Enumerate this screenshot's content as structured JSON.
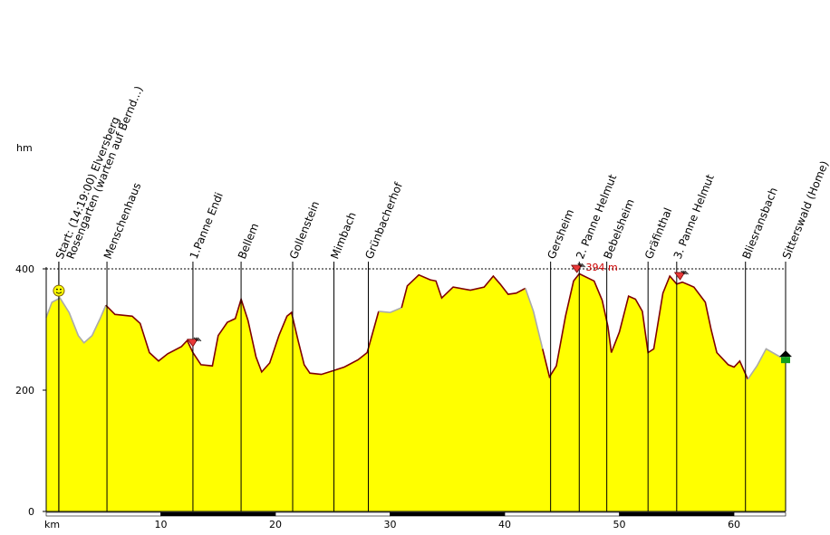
{
  "chart_data": {
    "type": "area",
    "ylabel": "hm",
    "xlabel": "km",
    "xlim": [
      0,
      64.5
    ],
    "ylim": [
      0,
      400
    ],
    "y_ticks": [
      "0",
      "200",
      "400"
    ],
    "x_ticks": [
      "10",
      "20",
      "30",
      "40",
      "50",
      "60"
    ],
    "colors": {
      "fill": "#ffff00",
      "line": "#800000",
      "paved_line": "#aaaaaa"
    },
    "profile": [
      {
        "km": 0.0,
        "alt": 320
      },
      {
        "km": 0.5,
        "alt": 345
      },
      {
        "km": 1.2,
        "alt": 352
      },
      {
        "km": 2.0,
        "alt": 328
      },
      {
        "km": 2.8,
        "alt": 290
      },
      {
        "km": 3.3,
        "alt": 278
      },
      {
        "km": 4.0,
        "alt": 290
      },
      {
        "km": 4.7,
        "alt": 318
      },
      {
        "km": 5.2,
        "alt": 340
      },
      {
        "km": 6.0,
        "alt": 325
      },
      {
        "km": 7.5,
        "alt": 322
      },
      {
        "km": 8.2,
        "alt": 310
      },
      {
        "km": 9.0,
        "alt": 262
      },
      {
        "km": 9.8,
        "alt": 248
      },
      {
        "km": 10.6,
        "alt": 260
      },
      {
        "km": 11.8,
        "alt": 272
      },
      {
        "km": 12.3,
        "alt": 282
      },
      {
        "km": 12.8,
        "alt": 262
      },
      {
        "km": 13.5,
        "alt": 242
      },
      {
        "km": 14.5,
        "alt": 240
      },
      {
        "km": 15.0,
        "alt": 290
      },
      {
        "km": 15.8,
        "alt": 312
      },
      {
        "km": 16.5,
        "alt": 318
      },
      {
        "km": 17.0,
        "alt": 350
      },
      {
        "km": 17.6,
        "alt": 315
      },
      {
        "km": 18.3,
        "alt": 255
      },
      {
        "km": 18.8,
        "alt": 230
      },
      {
        "km": 19.5,
        "alt": 245
      },
      {
        "km": 20.3,
        "alt": 290
      },
      {
        "km": 21.0,
        "alt": 322
      },
      {
        "km": 21.4,
        "alt": 328
      },
      {
        "km": 22.0,
        "alt": 280
      },
      {
        "km": 22.5,
        "alt": 242
      },
      {
        "km": 23.0,
        "alt": 228
      },
      {
        "km": 24.0,
        "alt": 226
      },
      {
        "km": 25.0,
        "alt": 232
      },
      {
        "km": 26.0,
        "alt": 238
      },
      {
        "km": 27.2,
        "alt": 250
      },
      {
        "km": 28.0,
        "alt": 262
      },
      {
        "km": 29.0,
        "alt": 330
      },
      {
        "km": 30.0,
        "alt": 328
      },
      {
        "km": 31.0,
        "alt": 336
      },
      {
        "km": 31.5,
        "alt": 372
      },
      {
        "km": 32.5,
        "alt": 390
      },
      {
        "km": 33.5,
        "alt": 382
      },
      {
        "km": 34.0,
        "alt": 380
      },
      {
        "km": 34.5,
        "alt": 352
      },
      {
        "km": 35.5,
        "alt": 370
      },
      {
        "km": 37.0,
        "alt": 365
      },
      {
        "km": 38.2,
        "alt": 370
      },
      {
        "km": 39.0,
        "alt": 388
      },
      {
        "km": 39.6,
        "alt": 375
      },
      {
        "km": 40.3,
        "alt": 358
      },
      {
        "km": 41.0,
        "alt": 360
      },
      {
        "km": 41.8,
        "alt": 368
      },
      {
        "km": 42.5,
        "alt": 330
      },
      {
        "km": 43.3,
        "alt": 268
      },
      {
        "km": 43.9,
        "alt": 222
      },
      {
        "km": 44.5,
        "alt": 240
      },
      {
        "km": 45.3,
        "alt": 322
      },
      {
        "km": 46.0,
        "alt": 380
      },
      {
        "km": 46.5,
        "alt": 392
      },
      {
        "km": 47.8,
        "alt": 380
      },
      {
        "km": 48.5,
        "alt": 348
      },
      {
        "km": 49.0,
        "alt": 305
      },
      {
        "km": 49.3,
        "alt": 262
      },
      {
        "km": 50.0,
        "alt": 296
      },
      {
        "km": 50.8,
        "alt": 355
      },
      {
        "km": 51.4,
        "alt": 350
      },
      {
        "km": 52.0,
        "alt": 330
      },
      {
        "km": 52.5,
        "alt": 262
      },
      {
        "km": 53.0,
        "alt": 268
      },
      {
        "km": 53.8,
        "alt": 360
      },
      {
        "km": 54.4,
        "alt": 388
      },
      {
        "km": 55.0,
        "alt": 375
      },
      {
        "km": 55.5,
        "alt": 378
      },
      {
        "km": 56.5,
        "alt": 370
      },
      {
        "km": 57.5,
        "alt": 345
      },
      {
        "km": 58.0,
        "alt": 300
      },
      {
        "km": 58.5,
        "alt": 262
      },
      {
        "km": 59.5,
        "alt": 242
      },
      {
        "km": 60.0,
        "alt": 238
      },
      {
        "km": 60.5,
        "alt": 248
      },
      {
        "km": 61.2,
        "alt": 218
      },
      {
        "km": 62.0,
        "alt": 240
      },
      {
        "km": 62.8,
        "alt": 268
      },
      {
        "km": 64.0,
        "alt": 255
      },
      {
        "km": 64.5,
        "alt": 252
      }
    ],
    "waypoints": [
      {
        "km": 1.1,
        "label": "Start: (14:19:00) Elversberg"
      },
      {
        "km": 1.1,
        "label": "Rosengarten (warten auf Bernd...)"
      },
      {
        "km": 5.3,
        "label": "Menschenhaus"
      },
      {
        "km": 12.8,
        "label": "1.Panne Endi"
      },
      {
        "km": 17.0,
        "label": "Bellem"
      },
      {
        "km": 21.5,
        "label": "Gollenstein"
      },
      {
        "km": 25.1,
        "label": "Mimbach"
      },
      {
        "km": 28.1,
        "label": "Grünbacherhof"
      },
      {
        "km": 44.0,
        "label": "Gersheim"
      },
      {
        "km": 46.5,
        "label": "2. Panne Helmut"
      },
      {
        "km": 48.9,
        "label": "Bebelsheim"
      },
      {
        "km": 52.5,
        "label": "Gräfinthal"
      },
      {
        "km": 55.0,
        "label": "3. Panne Helmut"
      },
      {
        "km": 61.0,
        "label": "Bliesransbach"
      },
      {
        "km": 64.5,
        "label": "Sitterswald (Home)"
      }
    ],
    "annotations": [
      {
        "km": 46.6,
        "alt": 394,
        "label": "394 m"
      }
    ]
  }
}
